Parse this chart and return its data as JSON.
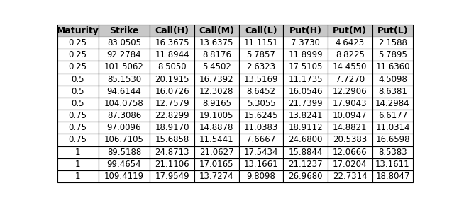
{
  "columns": [
    "Maturity",
    "Strike",
    "Call(H)",
    "Call(M)",
    "Call(L)",
    "Put(H)",
    "Put(M)",
    "Put(L)"
  ],
  "rows": [
    [
      "0.25",
      "83.0505",
      "16.3675",
      "13.6375",
      "11.1151",
      "7.3730",
      "4.6423",
      "2.1588"
    ],
    [
      "0.25",
      "92.2784",
      "11.8944",
      "8.8176",
      "5.7857",
      "11.8999",
      "8.8225",
      "5.7895"
    ],
    [
      "0.25",
      "101.5062",
      "8.5050",
      "5.4502",
      "2.6323",
      "17.5105",
      "14.4550",
      "11.6360"
    ],
    [
      "0.5",
      "85.1530",
      "20.1915",
      "16.7392",
      "13.5169",
      "11.1735",
      "7.7270",
      "4.5098"
    ],
    [
      "0.5",
      "94.6144",
      "16.0726",
      "12.3028",
      "8.6452",
      "16.0546",
      "12.2906",
      "8.6381"
    ],
    [
      "0.5",
      "104.0758",
      "12.7579",
      "8.9165",
      "5.3055",
      "21.7399",
      "17.9043",
      "14.2984"
    ],
    [
      "0.75",
      "87.3086",
      "22.8299",
      "19.1005",
      "15.6245",
      "13.8241",
      "10.0947",
      "6.6177"
    ],
    [
      "0.75",
      "97.0096",
      "18.9170",
      "14.8878",
      "11.0383",
      "18.9112",
      "14.8821",
      "11.0314"
    ],
    [
      "0.75",
      "106.7105",
      "15.6858",
      "11.5441",
      "7.6667",
      "24.6800",
      "20.5383",
      "16.6598"
    ],
    [
      "1",
      "89.5188",
      "24.8713",
      "21.0627",
      "17.5434",
      "15.8844",
      "12.0666",
      "8.5383"
    ],
    [
      "1",
      "99.4654",
      "21.1106",
      "17.0165",
      "13.1661",
      "21.1237",
      "17.0204",
      "13.1611"
    ],
    [
      "1",
      "109.4119",
      "17.9549",
      "13.7274",
      "9.8098",
      "26.9680",
      "22.7314",
      "18.8047"
    ]
  ],
  "header_bg": "#c8c8c8",
  "header_fg": "#000000",
  "row_bg": "#ffffff",
  "grid_color": "#000000",
  "font_size": 8.5,
  "header_font_size": 9.0,
  "figsize": [
    6.47,
    2.9
  ],
  "dpi": 100
}
